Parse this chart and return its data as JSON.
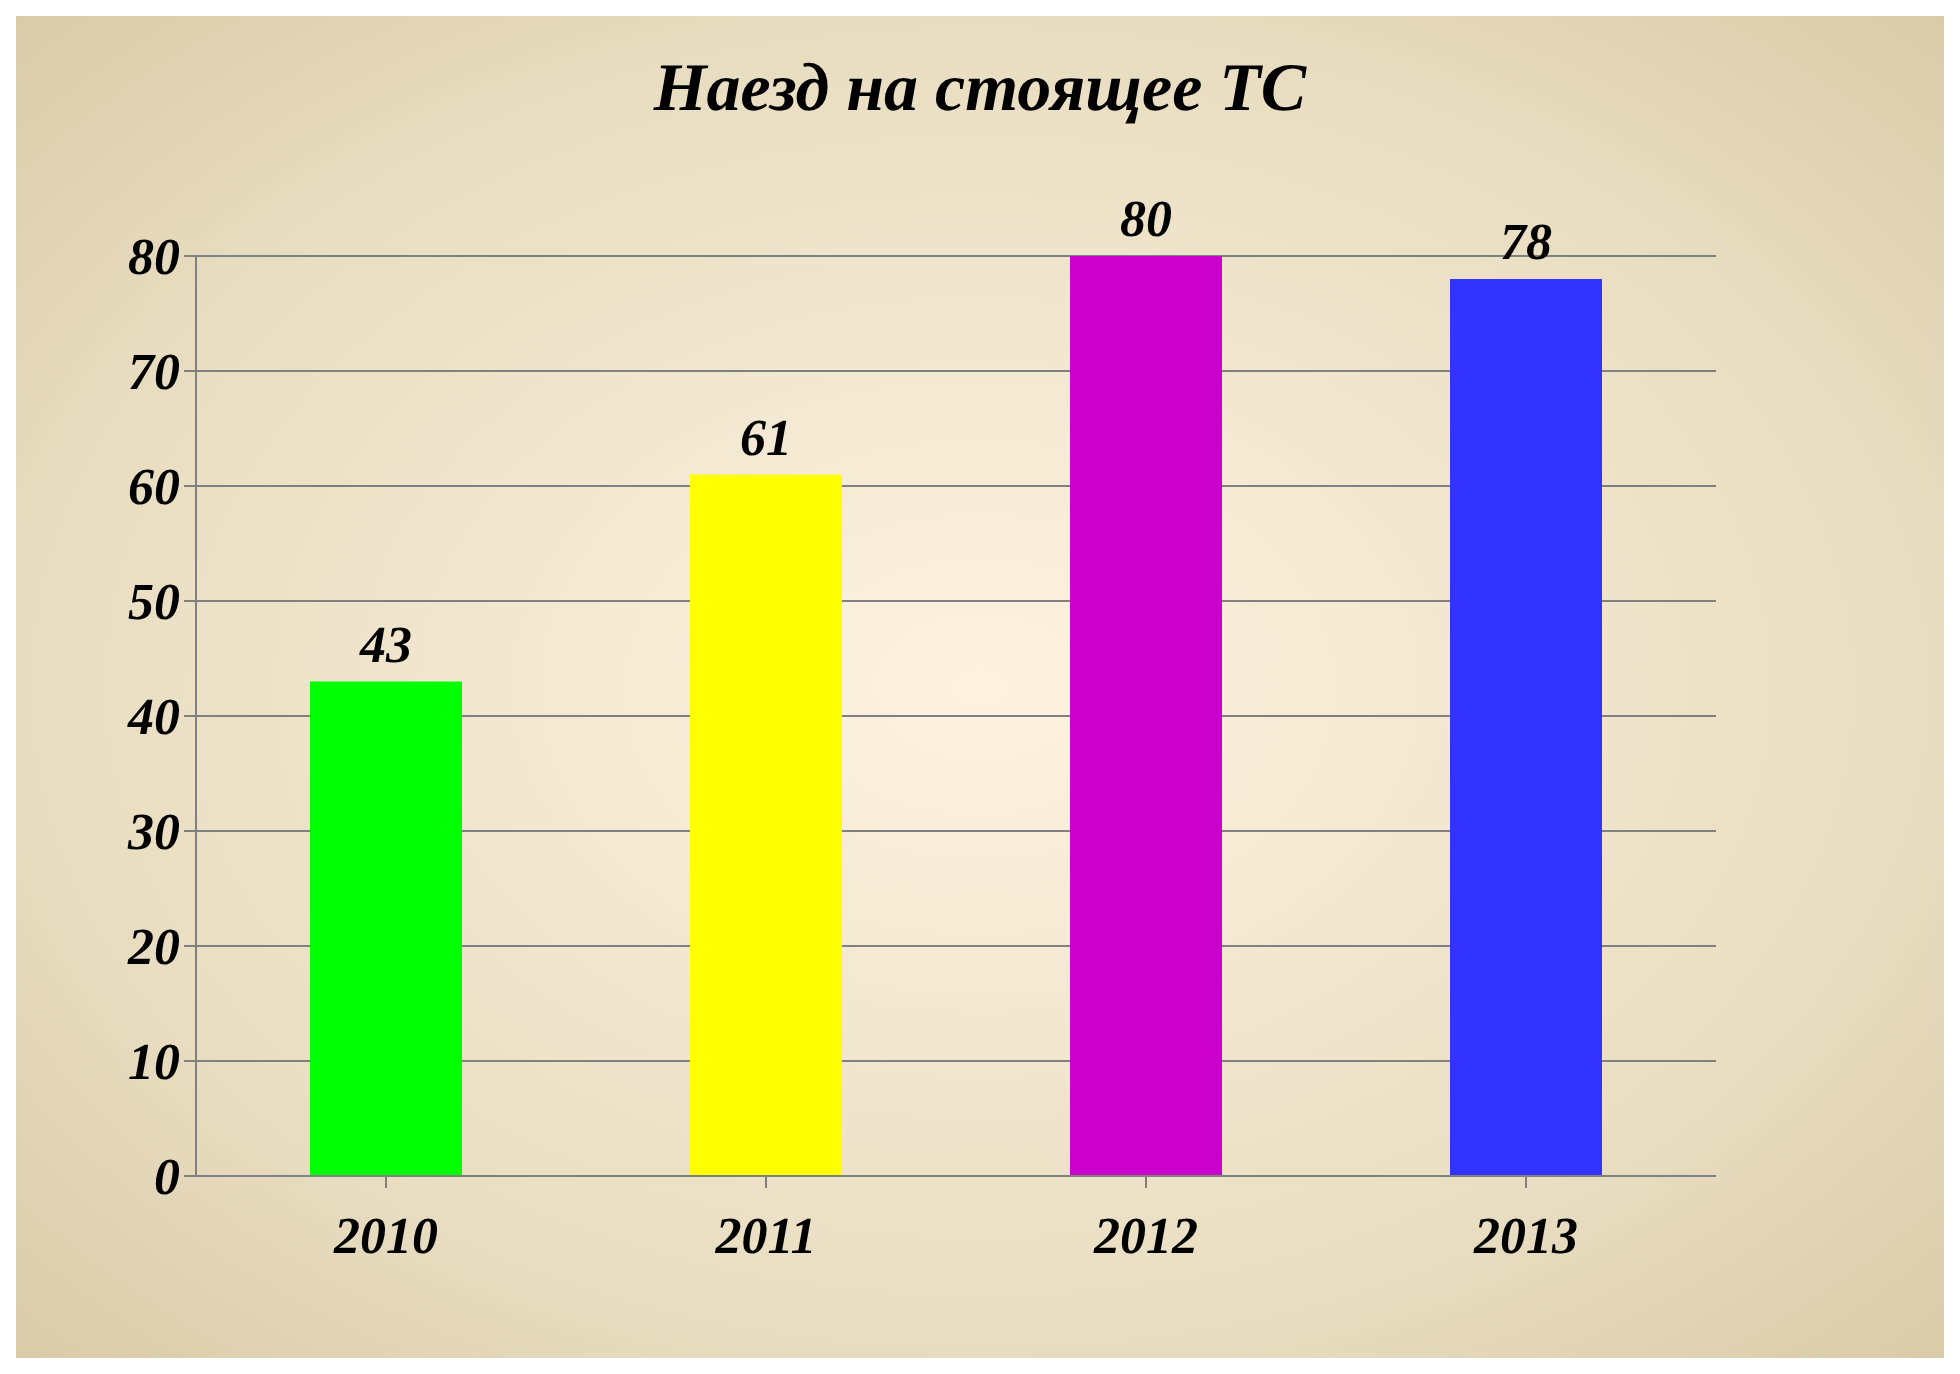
{
  "chart_data": {
    "type": "bar",
    "title": "Наезд на стоящее ТС",
    "categories": [
      "2010",
      "2011",
      "2012",
      "2013"
    ],
    "values": [
      43,
      61,
      80,
      78
    ],
    "colors": [
      "#00ff00",
      "#ffff00",
      "#cc00cc",
      "#3333ff"
    ],
    "ylim": [
      0,
      80
    ],
    "yticks": [
      0,
      10,
      20,
      30,
      40,
      50,
      60,
      70,
      80
    ],
    "grid": "y",
    "data_labels": true
  }
}
